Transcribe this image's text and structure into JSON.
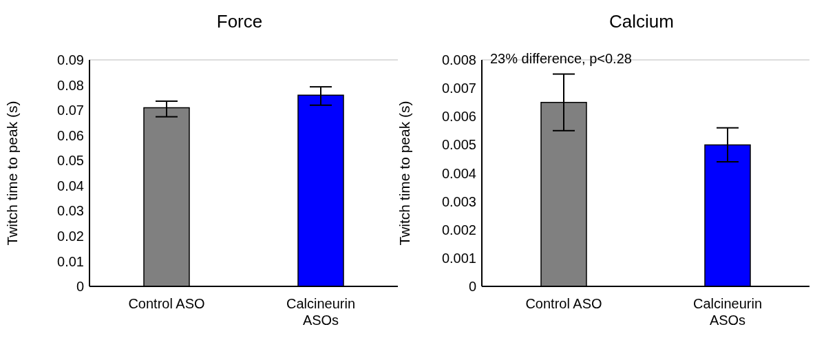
{
  "chart_data": [
    {
      "type": "bar",
      "title": "Force",
      "ylabel": "Twitch time to peak (s)",
      "categories": [
        "Control ASO",
        "Calcineurin ASOs"
      ],
      "values": [
        0.071,
        0.076
      ],
      "colors": [
        "#808080",
        "#0000ff"
      ],
      "errors": [
        [
          0.0674,
          0.0736
        ],
        [
          0.072,
          0.0793
        ]
      ],
      "ylim": [
        0,
        0.09
      ],
      "yticks": [
        0,
        0.01,
        0.02,
        0.03,
        0.04,
        0.05,
        0.06,
        0.07,
        0.08,
        0.09
      ],
      "grid": false
    },
    {
      "type": "bar",
      "title": "Calcium",
      "ylabel": "Twitch time to peak (s)",
      "categories": [
        "Control ASO",
        "Calcineurin ASOs"
      ],
      "values": [
        0.0065,
        0.005
      ],
      "colors": [
        "#808080",
        "#0000ff"
      ],
      "errors": [
        [
          0.0055,
          0.0075
        ],
        [
          0.0044,
          0.0056
        ]
      ],
      "ylim": [
        0,
        0.008
      ],
      "yticks": [
        0,
        0.001,
        0.002,
        0.003,
        0.004,
        0.005,
        0.006,
        0.007,
        0.008
      ],
      "grid": false,
      "annotations": [
        "23% difference, p<0.28"
      ]
    }
  ]
}
